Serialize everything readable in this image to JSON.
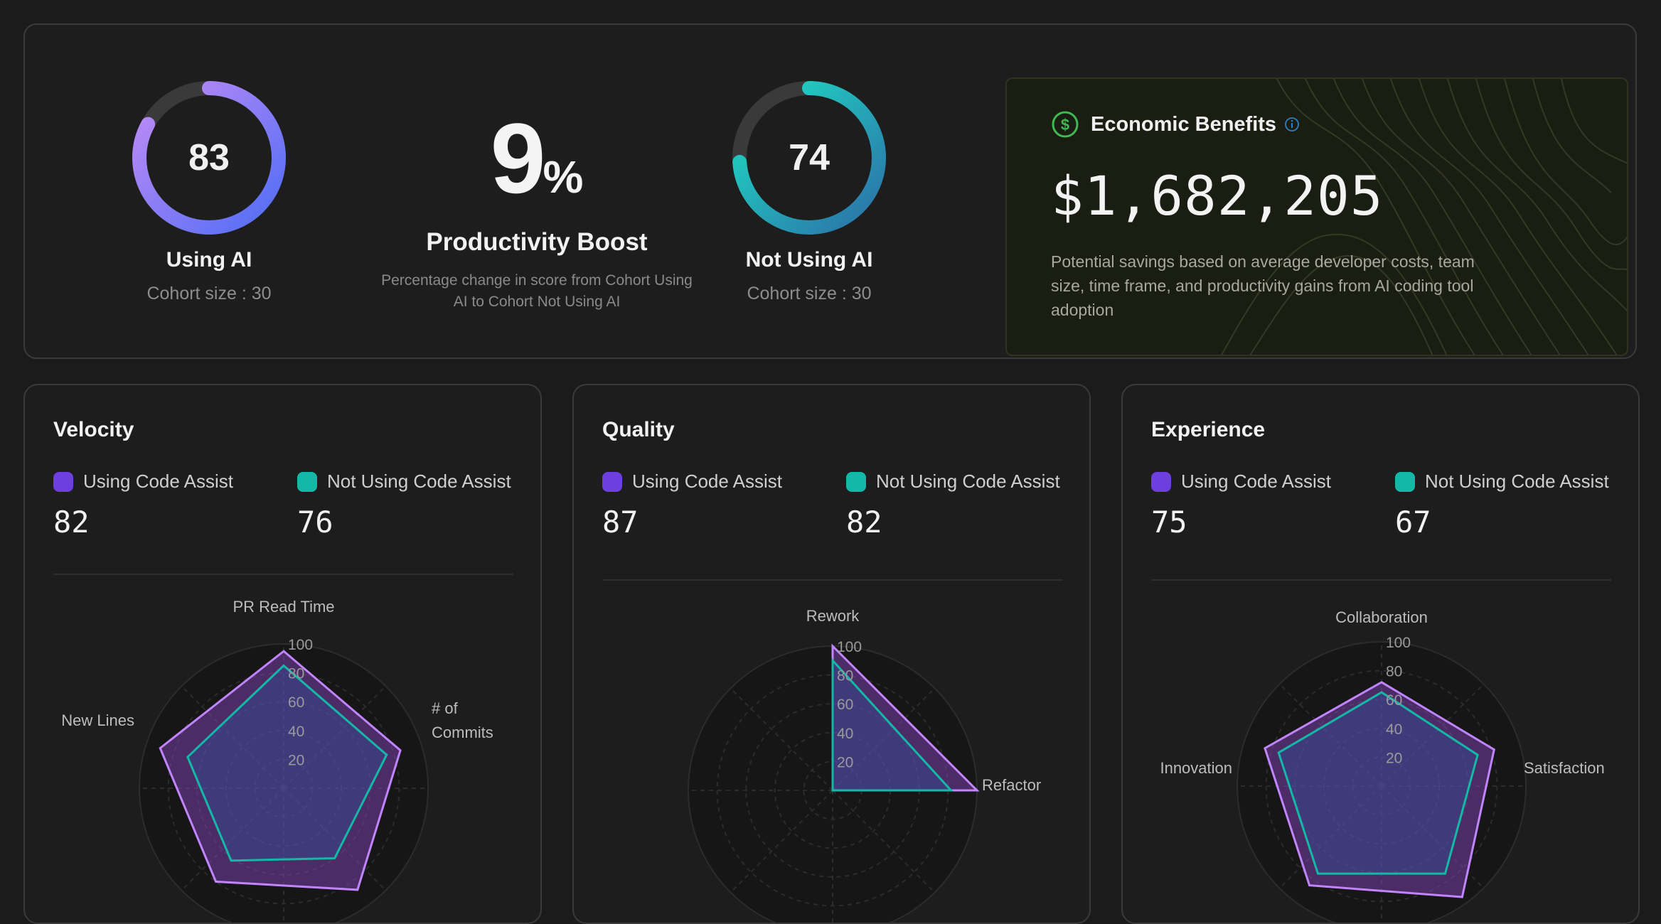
{
  "summary": {
    "using_ai": {
      "score": "83",
      "label": "Using AI",
      "cohort": "Cohort size : 30",
      "progress": 0.83
    },
    "boost": {
      "value": "9",
      "unit": "%",
      "title": "Productivity Boost",
      "description": "Percentage change in score from Cohort Using AI to Cohort Not Using AI"
    },
    "not_using_ai": {
      "score": "74",
      "label": "Not Using AI",
      "cohort": "Cohort size : 30",
      "progress": 0.74
    },
    "economic": {
      "title": "Economic Benefits",
      "amount": "$1,682,205",
      "description": "Potential savings based on average developer costs, team size, time frame, and productivity gains from AI coding tool adoption",
      "info_icon": "info-icon",
      "dollar_icon": "dollar-circle-icon"
    }
  },
  "colors": {
    "using": "#6d3fe0",
    "using_line": "#c084fc",
    "not_using": "#14b8a6",
    "accent_green": "#3fb950"
  },
  "cards": [
    {
      "title": "Velocity",
      "legend_using": "Using Code Assist",
      "legend_not": "Not Using Code Assist",
      "score_using": "82",
      "score_not": "76",
      "chart_data": {
        "type": "radar",
        "axes": [
          "PR Read Time",
          "# of Commits",
          "",
          "",
          "New Lines"
        ],
        "ticks": [
          "20",
          "40",
          "60",
          "80",
          "100"
        ],
        "range": [
          0,
          100
        ],
        "series": [
          {
            "name": "Using Code Assist",
            "values": [
              95,
              85,
              87,
              80,
              90
            ]
          },
          {
            "name": "Not Using Code Assist",
            "values": [
              85,
              75,
              60,
              62,
              70
            ]
          }
        ]
      }
    },
    {
      "title": "Quality",
      "legend_using": "Using Code Assist",
      "legend_not": "Not Using Code Assist",
      "score_using": "87",
      "score_not": "82",
      "chart_data": {
        "type": "radar",
        "axes": [
          "Rework",
          "Refactor",
          "",
          ""
        ],
        "ticks": [
          "20",
          "40",
          "60",
          "80",
          "100"
        ],
        "range": [
          0,
          100
        ],
        "series": [
          {
            "name": "Using Code Assist",
            "values": [
              100,
              100,
              0,
              0
            ]
          },
          {
            "name": "Not Using Code Assist",
            "values": [
              90,
              82,
              0,
              0
            ]
          }
        ]
      }
    },
    {
      "title": "Experience",
      "legend_using": "Using Code Assist",
      "legend_not": "Not Using Code Assist",
      "score_using": "75",
      "score_not": "67",
      "chart_data": {
        "type": "radar",
        "axes": [
          "Collaboration",
          "Satisfaction",
          "",
          "",
          "Innovation"
        ],
        "ticks": [
          "20",
          "40",
          "60",
          "80",
          "100"
        ],
        "range": [
          0,
          100
        ],
        "series": [
          {
            "name": "Using Code Assist",
            "values": [
              72,
              82,
              95,
              85,
              85
            ]
          },
          {
            "name": "Not Using Code Assist",
            "values": [
              65,
              70,
              75,
              75,
              75
            ]
          }
        ]
      }
    }
  ]
}
